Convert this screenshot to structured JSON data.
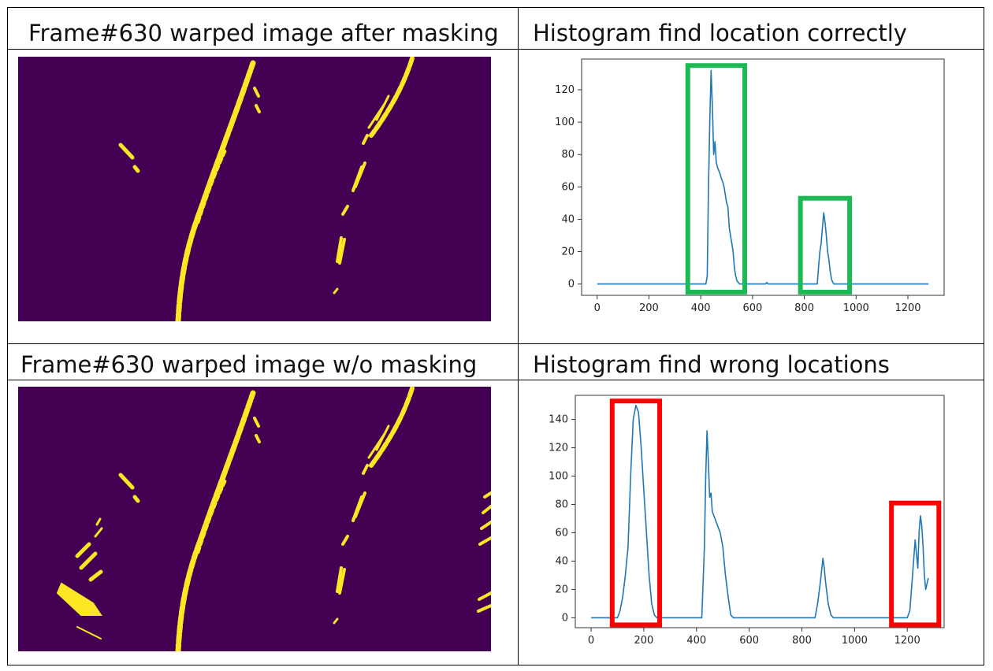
{
  "cells": {
    "top_left_title": "Frame#630 warped image after masking",
    "top_right_title": "Histogram find location correctly",
    "bottom_left_title": "Frame#630 warped image w/o masking",
    "bottom_right_title": "Histogram find wrong locations"
  },
  "colors": {
    "image_background": "#440154",
    "lane_pixels": "#fde725",
    "histogram_line": "#1f77b4",
    "correct_box": "#1db954",
    "wrong_box": "#ff0000"
  },
  "chart_data": [
    {
      "type": "line",
      "title": "Histogram find location correctly",
      "xlim": [
        -60,
        1340
      ],
      "ylim": [
        -7,
        139
      ],
      "xticks": [
        0,
        200,
        400,
        600,
        800,
        1000,
        1200
      ],
      "yticks": [
        0,
        20,
        40,
        60,
        80,
        100,
        120
      ],
      "series": [
        {
          "x": [
            0,
            420,
            425,
            430,
            435,
            440,
            445,
            450,
            455,
            460,
            465,
            470,
            475,
            480,
            485,
            490,
            495,
            500,
            505,
            510,
            515,
            520,
            525,
            530,
            535,
            540,
            545,
            550,
            555,
            650,
            655,
            660,
            850,
            855,
            860,
            865,
            870,
            875,
            880,
            885,
            890,
            895,
            900,
            905,
            910,
            915,
            1280
          ],
          "y": [
            0,
            0,
            5,
            60,
            100,
            132,
            110,
            80,
            88,
            75,
            72,
            70,
            68,
            65,
            63,
            60,
            55,
            50,
            48,
            35,
            30,
            25,
            20,
            10,
            5,
            2,
            1,
            0,
            0,
            0,
            1,
            0,
            0,
            10,
            20,
            25,
            35,
            44,
            38,
            30,
            20,
            15,
            8,
            3,
            1,
            0,
            0
          ]
        }
      ],
      "highlight_boxes": [
        {
          "x_range": [
            350,
            570
          ],
          "y_range": [
            -5,
            135
          ],
          "color": "#1db954",
          "meaning": "correct lane peaks"
        },
        {
          "x_range": [
            785,
            975
          ],
          "y_range": [
            -5,
            53
          ],
          "color": "#1db954",
          "meaning": "correct lane peaks"
        }
      ]
    },
    {
      "type": "line",
      "title": "Histogram find wrong locations",
      "xlim": [
        -60,
        1340
      ],
      "ylim": [
        -7,
        157
      ],
      "xticks": [
        0,
        200,
        400,
        600,
        800,
        1000,
        1200
      ],
      "yticks": [
        0,
        20,
        40,
        60,
        80,
        100,
        120,
        140
      ],
      "series": [
        {
          "x": [
            0,
            100,
            110,
            120,
            130,
            140,
            150,
            160,
            170,
            180,
            190,
            200,
            210,
            220,
            230,
            240,
            250,
            260,
            420,
            430,
            435,
            440,
            445,
            450,
            455,
            460,
            470,
            480,
            490,
            500,
            510,
            520,
            530,
            540,
            850,
            860,
            870,
            880,
            885,
            890,
            900,
            910,
            920,
            1200,
            1210,
            1220,
            1230,
            1240,
            1245,
            1250,
            1255,
            1260,
            1265,
            1270,
            1280
          ],
          "y": [
            0,
            0,
            5,
            15,
            30,
            50,
            100,
            140,
            150,
            145,
            120,
            90,
            60,
            30,
            10,
            2,
            0,
            0,
            0,
            50,
            100,
            132,
            110,
            85,
            88,
            75,
            70,
            65,
            60,
            50,
            30,
            15,
            2,
            0,
            0,
            10,
            25,
            42,
            35,
            25,
            10,
            2,
            0,
            0,
            5,
            30,
            55,
            35,
            60,
            72,
            65,
            50,
            30,
            20,
            28
          ]
        }
      ],
      "highlight_boxes": [
        {
          "x_range": [
            80,
            260
          ],
          "y_range": [
            -5,
            153
          ],
          "color": "#ff0000",
          "meaning": "wrong lane peak"
        },
        {
          "x_range": [
            1140,
            1320
          ],
          "y_range": [
            -5,
            81
          ],
          "color": "#ff0000",
          "meaning": "wrong lane peak"
        }
      ]
    }
  ]
}
